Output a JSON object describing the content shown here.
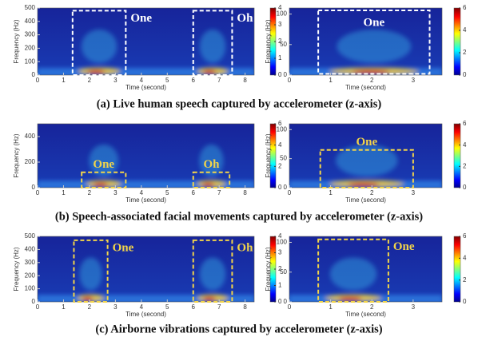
{
  "chart_data": [
    {
      "type": "spectrogram",
      "xlabel": "Time (second)",
      "ylabel": "Frequency (Hz)",
      "xlim": [
        0,
        8.35
      ],
      "ylim": [
        0,
        500
      ],
      "xticks": [
        0,
        1,
        2,
        3,
        4,
        5,
        6,
        7,
        8
      ],
      "yticks": [
        0,
        100,
        200,
        300,
        400,
        500
      ],
      "colorbar": {
        "lim": [
          0,
          4
        ],
        "ticks": [
          0,
          1,
          2,
          3,
          4
        ]
      },
      "annotation_color": "#ffffff",
      "annotations": [
        {
          "label": "One",
          "x": [
            1.35,
            3.4
          ],
          "y": [
            0,
            480
          ]
        },
        {
          "label": "Oh",
          "x": [
            6.0,
            7.5
          ],
          "y": [
            0,
            480
          ]
        }
      ]
    },
    {
      "type": "spectrogram",
      "xlabel": "Time (second)",
      "ylabel": "Frequency (Hz)",
      "xlim": [
        0,
        3.7
      ],
      "ylim": [
        0,
        110
      ],
      "xticks": [
        0,
        1,
        2,
        3
      ],
      "yticks": [
        0,
        50,
        100
      ],
      "colorbar": {
        "lim": [
          0,
          6
        ],
        "ticks": [
          0,
          2,
          4,
          6
        ]
      },
      "annotation_color": "#ffffff",
      "annotations": [
        {
          "label": "One",
          "x": [
            0.7,
            3.4
          ],
          "y": [
            2,
            106
          ]
        }
      ]
    },
    {
      "type": "spectrogram",
      "xlabel": "Time (second)",
      "ylabel": "Frequency (Hz)",
      "xlim": [
        0,
        8.35
      ],
      "ylim": [
        0,
        500
      ],
      "xticks": [
        0,
        1,
        2,
        3,
        4,
        5,
        6,
        7,
        8
      ],
      "yticks": [
        0,
        200,
        400
      ],
      "colorbar": {
        "lim": [
          0,
          6
        ],
        "ticks": [
          0,
          2,
          4,
          6
        ]
      },
      "annotation_color": "#f2d44a",
      "annotations": [
        {
          "label": "One",
          "x": [
            1.7,
            3.4
          ],
          "y": [
            0,
            120
          ]
        },
        {
          "label": "Oh",
          "x": [
            6.0,
            7.4
          ],
          "y": [
            0,
            120
          ]
        }
      ]
    },
    {
      "type": "spectrogram",
      "xlabel": "Time (second)",
      "ylabel": "Frequency (Hz)",
      "xlim": [
        0,
        3.7
      ],
      "ylim": [
        0,
        110
      ],
      "xticks": [
        0,
        1,
        2,
        3
      ],
      "yticks": [
        0,
        50,
        100
      ],
      "colorbar": {
        "lim": [
          0,
          6
        ],
        "ticks": [
          0,
          2,
          4,
          6
        ]
      },
      "annotation_color": "#f2d44a",
      "annotations": [
        {
          "label": "One",
          "x": [
            0.75,
            3.0
          ],
          "y": [
            0,
            65
          ]
        }
      ]
    },
    {
      "type": "spectrogram",
      "xlabel": "Time (second)",
      "ylabel": "Frequency (Hz)",
      "xlim": [
        0,
        8.35
      ],
      "ylim": [
        0,
        500
      ],
      "xticks": [
        0,
        1,
        2,
        3,
        4,
        5,
        6,
        7,
        8
      ],
      "yticks": [
        0,
        100,
        200,
        300,
        400,
        500
      ],
      "colorbar": {
        "lim": [
          0,
          4
        ],
        "ticks": [
          0,
          1,
          2,
          3,
          4
        ]
      },
      "annotation_color": "#f2d44a",
      "annotations": [
        {
          "label": "One",
          "x": [
            1.4,
            2.7
          ],
          "y": [
            0,
            470
          ]
        },
        {
          "label": "Oh",
          "x": [
            6.0,
            7.5
          ],
          "y": [
            0,
            470
          ]
        }
      ]
    },
    {
      "type": "spectrogram",
      "xlabel": "Time (second)",
      "ylabel": "Frequency (Hz)",
      "xlim": [
        0,
        3.7
      ],
      "ylim": [
        0,
        110
      ],
      "xticks": [
        0,
        1,
        2,
        3
      ],
      "yticks": [
        0,
        50,
        100
      ],
      "colorbar": {
        "lim": [
          0,
          6
        ],
        "ticks": [
          0,
          2,
          4,
          6
        ]
      },
      "annotation_color": "#f2d44a",
      "annotations": [
        {
          "label": "One",
          "x": [
            0.7,
            2.4
          ],
          "y": [
            0,
            105
          ]
        }
      ]
    }
  ],
  "captions": [
    "(a) Live human speech captured by accelerometer (z-axis)",
    "(b) Speech-associated facial movements captured by accelerometer (z-axis)",
    "(c) Airborne vibrations captured by accelerometer (z-axis)"
  ]
}
